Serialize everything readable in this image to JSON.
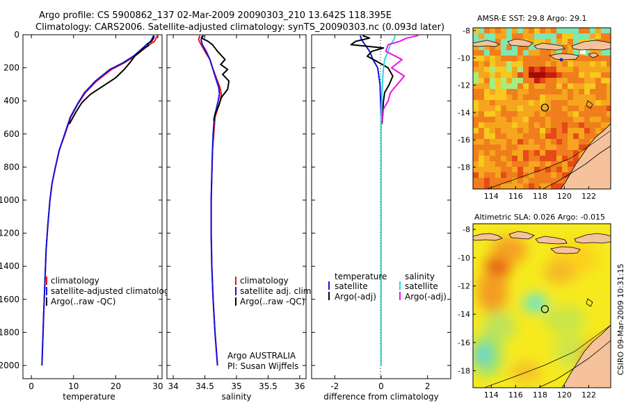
{
  "header": {
    "line1": "Argo profile: CS 5900862_137 02-Mar-2009 20090303_210 13.642S 118.395E",
    "line2": "Climatology: CARS2006. Satellite-adjusted climatology: synTS_20090303.nc (0.093d later)"
  },
  "side_stamp": "CSIRO 09-Mar-2009 10:31:15",
  "colors": {
    "climatology": "#ee1111",
    "satellite": "#1111dd",
    "argo": "#000000",
    "sat_salinity": "#22dddd",
    "argo_salinity": "#ee11ee"
  },
  "chart_data": [
    {
      "type": "line",
      "xlabel": "temperature",
      "ylabel": "",
      "xlim": [
        -2,
        31
      ],
      "ylim": [
        2080,
        0
      ],
      "xticks": [
        0,
        10,
        20,
        30
      ],
      "yticks": [
        0,
        200,
        400,
        600,
        800,
        1000,
        1200,
        1400,
        1600,
        1800,
        2000
      ],
      "legend": [
        "climatology",
        "satellite-adjusted climatology",
        "Argo(..raw -QC)"
      ],
      "series": [
        {
          "name": "climatology",
          "color": "#ee1111",
          "points": [
            [
              29.9,
              5
            ],
            [
              29.6,
              20
            ],
            [
              29.2,
              40
            ],
            [
              28.0,
              60
            ],
            [
              26.5,
              90
            ],
            [
              24.5,
              130
            ],
            [
              22.0,
              170
            ],
            [
              19.0,
              210
            ],
            [
              15.5,
              280
            ],
            [
              12.8,
              350
            ],
            [
              11.0,
              420
            ],
            [
              9.3,
              500
            ],
            [
              8.0,
              600
            ],
            [
              6.6,
              700
            ],
            [
              5.7,
              800
            ],
            [
              4.9,
              900
            ],
            [
              4.4,
              1000
            ],
            [
              3.9,
              1150
            ],
            [
              3.5,
              1300
            ],
            [
              3.2,
              1500
            ],
            [
              2.9,
              1700
            ],
            [
              2.7,
              1850
            ],
            [
              2.5,
              2000
            ]
          ]
        },
        {
          "name": "satellite-adjusted climatology",
          "color": "#1111dd",
          "points": [
            [
              29.0,
              5
            ],
            [
              28.7,
              20
            ],
            [
              28.3,
              40
            ],
            [
              27.3,
              60
            ],
            [
              26.0,
              90
            ],
            [
              24.2,
              130
            ],
            [
              21.7,
              170
            ],
            [
              18.6,
              210
            ],
            [
              15.2,
              280
            ],
            [
              12.6,
              350
            ],
            [
              10.9,
              420
            ],
            [
              9.2,
              500
            ],
            [
              7.9,
              600
            ],
            [
              6.6,
              700
            ],
            [
              5.7,
              800
            ],
            [
              4.9,
              900
            ],
            [
              4.4,
              1000
            ],
            [
              3.9,
              1150
            ],
            [
              3.5,
              1300
            ],
            [
              3.2,
              1500
            ],
            [
              2.9,
              1700
            ],
            [
              2.7,
              1850
            ],
            [
              2.5,
              2000
            ]
          ]
        },
        {
          "name": "Argo(..raw -QC)",
          "color": "#000000",
          "points": [
            [
              29.1,
              5
            ],
            [
              29.0,
              20
            ],
            [
              28.5,
              40
            ],
            [
              27.5,
              55
            ],
            [
              27.8,
              65
            ],
            [
              26.8,
              80
            ],
            [
              25.9,
              100
            ],
            [
              24.5,
              130
            ],
            [
              23.5,
              165
            ],
            [
              22.0,
              210
            ],
            [
              20.0,
              260
            ],
            [
              17.0,
              310
            ],
            [
              14.0,
              360
            ],
            [
              12.0,
              410
            ],
            [
              10.5,
              470
            ],
            [
              9.0,
              540
            ]
          ]
        }
      ]
    },
    {
      "type": "line",
      "xlabel": "salinity",
      "ylabel": "",
      "xlim": [
        33.9,
        36.1
      ],
      "ylim": [
        2080,
        0
      ],
      "xticks": [
        34,
        34.5,
        35,
        35.5,
        36
      ],
      "legend": [
        "climatology",
        "satellite adj. clim.",
        "Argo(..raw -QC)"
      ],
      "annotations": [
        "Argo AUSTRALIA",
        "PI: Susan Wijffels"
      ],
      "series": [
        {
          "name": "climatology",
          "color": "#ee1111",
          "points": [
            [
              34.42,
              5
            ],
            [
              34.4,
              30
            ],
            [
              34.44,
              60
            ],
            [
              34.5,
              100
            ],
            [
              34.58,
              150
            ],
            [
              34.62,
              200
            ],
            [
              34.68,
              260
            ],
            [
              34.74,
              320
            ],
            [
              34.76,
              360
            ],
            [
              34.74,
              400
            ],
            [
              34.7,
              450
            ],
            [
              34.66,
              500
            ],
            [
              34.64,
              600
            ],
            [
              34.62,
              700
            ],
            [
              34.61,
              850
            ],
            [
              34.6,
              1000
            ],
            [
              34.6,
              1200
            ],
            [
              34.61,
              1400
            ],
            [
              34.63,
              1600
            ],
            [
              34.66,
              1800
            ],
            [
              34.7,
              2000
            ]
          ]
        },
        {
          "name": "satellite adj. clim.",
          "color": "#1111dd",
          "points": [
            [
              34.46,
              5
            ],
            [
              34.44,
              30
            ],
            [
              34.46,
              60
            ],
            [
              34.52,
              100
            ],
            [
              34.58,
              150
            ],
            [
              34.62,
              200
            ],
            [
              34.67,
              260
            ],
            [
              34.72,
              320
            ],
            [
              34.73,
              360
            ],
            [
              34.71,
              400
            ],
            [
              34.68,
              450
            ],
            [
              34.65,
              500
            ],
            [
              34.63,
              600
            ],
            [
              34.62,
              700
            ],
            [
              34.61,
              850
            ],
            [
              34.6,
              1000
            ],
            [
              34.6,
              1200
            ],
            [
              34.61,
              1400
            ],
            [
              34.63,
              1600
            ],
            [
              34.66,
              1800
            ],
            [
              34.7,
              2000
            ]
          ]
        },
        {
          "name": "Argo(..raw -QC)",
          "color": "#000000",
          "points": [
            [
              34.48,
              5
            ],
            [
              34.45,
              20
            ],
            [
              34.55,
              40
            ],
            [
              34.62,
              60
            ],
            [
              34.7,
              100
            ],
            [
              34.82,
              150
            ],
            [
              34.75,
              180
            ],
            [
              34.86,
              210
            ],
            [
              34.78,
              240
            ],
            [
              34.88,
              280
            ],
            [
              34.86,
              330
            ],
            [
              34.76,
              380
            ],
            [
              34.72,
              430
            ],
            [
              34.66,
              480
            ],
            [
              34.64,
              520
            ]
          ]
        }
      ]
    },
    {
      "type": "line",
      "xlabel": "difference from climatology",
      "ylabel": "",
      "xlim": [
        -3,
        3
      ],
      "ylim": [
        2080,
        0
      ],
      "xticks": [
        -2,
        0,
        2
      ],
      "legend_left": {
        "title": "temperature",
        "items": [
          "satellite",
          "Argo(-adj)"
        ]
      },
      "legend_right": {
        "title": "salinity",
        "items": [
          "satellite",
          "Argo(-adj)"
        ]
      },
      "series": [
        {
          "name": "temperature satellite",
          "color": "#1111dd",
          "points": [
            [
              -0.9,
              5
            ],
            [
              -0.85,
              30
            ],
            [
              -0.7,
              60
            ],
            [
              -0.5,
              100
            ],
            [
              -0.35,
              150
            ],
            [
              -0.15,
              200
            ],
            [
              -0.05,
              300
            ],
            [
              0,
              500
            ],
            [
              0,
              2000
            ]
          ]
        },
        {
          "name": "temperature Argo(-adj)",
          "color": "#000000",
          "points": [
            [
              -0.8,
              5
            ],
            [
              -0.5,
              20
            ],
            [
              -1.1,
              40
            ],
            [
              -1.3,
              60
            ],
            [
              0.1,
              80
            ],
            [
              -0.4,
              100
            ],
            [
              -0.6,
              130
            ],
            [
              -0.2,
              160
            ],
            [
              0.3,
              200
            ],
            [
              0.5,
              250
            ],
            [
              0.35,
              300
            ],
            [
              0.15,
              350
            ],
            [
              0.1,
              400
            ],
            [
              0.05,
              500
            ],
            [
              0.03,
              540
            ]
          ]
        },
        {
          "name": "salinity satellite",
          "color": "#22dddd",
          "points": [
            [
              0.6,
              5
            ],
            [
              0.55,
              30
            ],
            [
              0.4,
              60
            ],
            [
              0.3,
              100
            ],
            [
              0.15,
              150
            ],
            [
              0.1,
              200
            ],
            [
              0.05,
              300
            ],
            [
              0,
              500
            ],
            [
              0,
              2000
            ]
          ]
        },
        {
          "name": "salinity Argo(-adj)",
          "color": "#ee11ee",
          "points": [
            [
              1.6,
              5
            ],
            [
              1.1,
              20
            ],
            [
              0.8,
              40
            ],
            [
              0.3,
              60
            ],
            [
              0.2,
              100
            ],
            [
              0.9,
              150
            ],
            [
              0.45,
              200
            ],
            [
              1.0,
              250
            ],
            [
              0.7,
              300
            ],
            [
              0.4,
              350
            ],
            [
              0.3,
              400
            ],
            [
              0.1,
              450
            ],
            [
              0.05,
              520
            ]
          ]
        }
      ]
    },
    {
      "type": "heatmap",
      "title": "AMSR-E SST: 29.8 Argo: 29.1",
      "xlim": [
        112.5,
        123.8
      ],
      "ylim": [
        -19.6,
        -7.8
      ],
      "xticks": [
        114,
        116,
        118,
        120,
        122
      ],
      "yticks": [
        -8,
        -10,
        -12,
        -14,
        -16,
        -18
      ],
      "marker": [
        118.4,
        -13.64
      ]
    },
    {
      "type": "heatmap",
      "title": "Altimetric SLA: 0.026 Argo: -0.015",
      "xlim": [
        112.5,
        123.8
      ],
      "ylim": [
        -19.2,
        -7.6
      ],
      "xticks": [
        114,
        116,
        118,
        120,
        122
      ],
      "yticks": [
        -8,
        -10,
        -12,
        -14,
        -16,
        -18
      ],
      "marker": [
        118.4,
        -13.64
      ]
    }
  ]
}
